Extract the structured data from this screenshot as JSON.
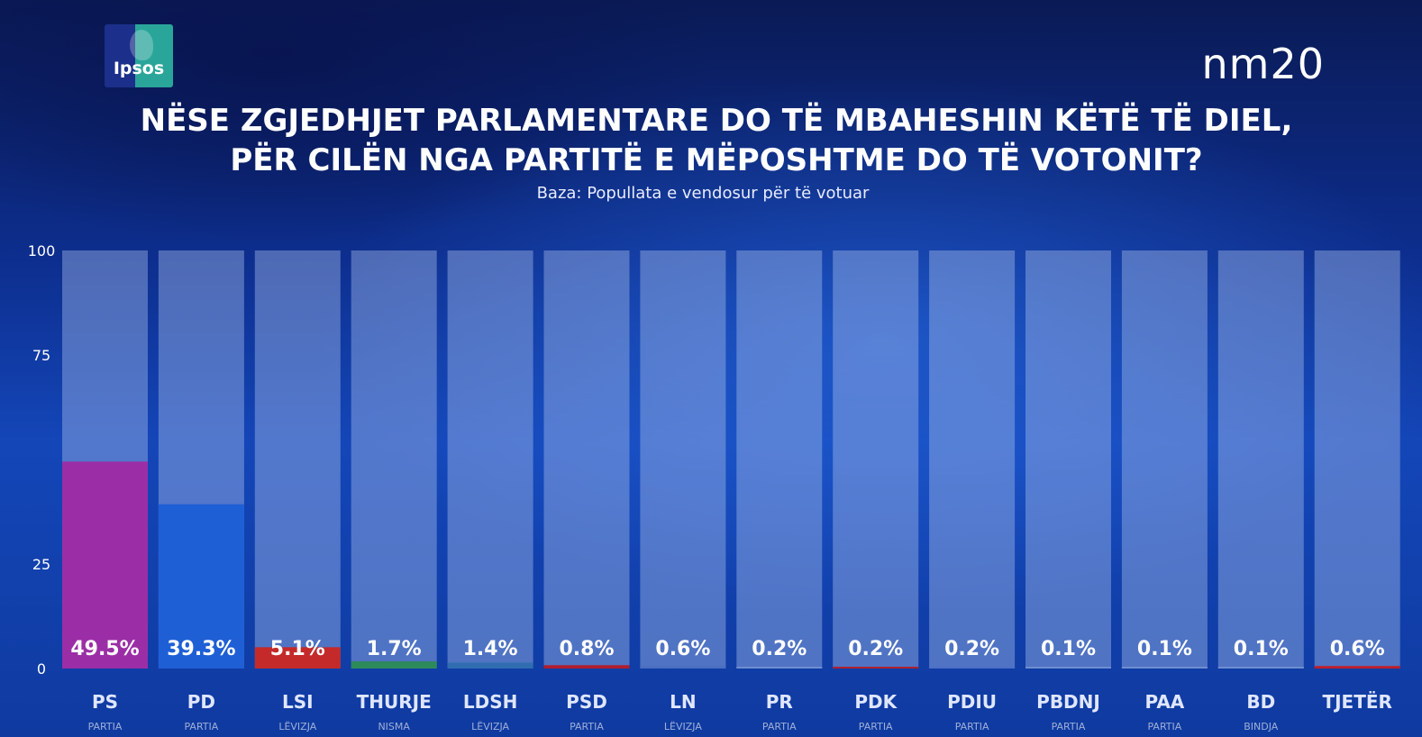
{
  "header": {
    "logo_text": "Ipsos",
    "channel": "nm20",
    "title_line1": "NËSE ZGJEDHJET PARLAMENTARE DO TË MBAHESHIN KËTË TË DIEL,",
    "title_line2": "PËR CILËN NGA PARTITË E MËPOSHTME DO TË VOTONIT?",
    "subtitle": "Baza: Popullata e vendosur për të votuar"
  },
  "chart_data": {
    "type": "bar",
    "categories": [
      "PS",
      "PD",
      "LSI",
      "THURJE",
      "LDSH",
      "PSD",
      "LN",
      "PR",
      "PDK",
      "PDIU",
      "PBDNJ",
      "PAA",
      "BD",
      "TJETËR"
    ],
    "sublabels": [
      "PARTIA",
      "PARTIA",
      "LËVIZJA",
      "NISMA",
      "LËVIZJA",
      "PARTIA",
      "LËVIZJA",
      "PARTIA",
      "PARTIA",
      "PARTIA",
      "PARTIA",
      "PARTIA",
      "BINDJA",
      ""
    ],
    "values": [
      49.5,
      39.3,
      5.1,
      1.7,
      1.4,
      0.8,
      0.6,
      0.2,
      0.2,
      0.2,
      0.1,
      0.1,
      0.1,
      0.6
    ],
    "value_labels": [
      "49.5%",
      "39.3%",
      "5.1%",
      "1.7%",
      "1.4%",
      "0.8%",
      "0.6%",
      "0.2%",
      "0.2%",
      "0.2%",
      "0.1%",
      "0.1%",
      "0.1%",
      "0.6%"
    ],
    "colors": [
      "#9b2ea6",
      "#1f5fd6",
      "#c42a2a",
      "#2d8a5a",
      "#2f6db0",
      "#b01e2e",
      "#4a6fc0",
      "#6f8ed0",
      "#b02030",
      "#4d6fc6",
      "#6f8ed0",
      "#6f8ed0",
      "#6f8ed0",
      "#c01d2a"
    ],
    "yticks": [
      0,
      25,
      75,
      100
    ],
    "ylim": [
      0,
      100
    ],
    "title": "NËSE ZGJEDHJET PARLAMENTARE DO TË MBAHESHIN KËTË TË DIEL, PËR CILËN NGA PARTITË E MËPOSHTME DO TË VOTONIT?",
    "xlabel": "",
    "ylabel": ""
  }
}
